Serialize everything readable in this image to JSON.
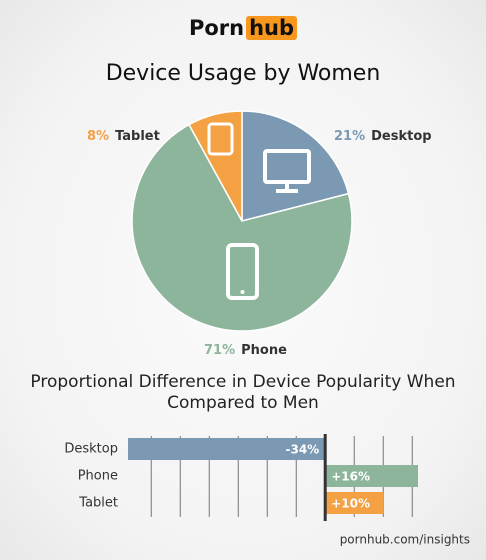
{
  "header": {
    "brand": [
      "Porn",
      "hub"
    ]
  },
  "chart_data": [
    {
      "type": "pie",
      "title": "Device Usage by Women",
      "categories": [
        "Desktop",
        "Phone",
        "Tablet"
      ],
      "values": [
        21,
        71,
        8
      ],
      "value_labels": [
        "21%",
        "71%",
        "8%"
      ],
      "colors": [
        "#7b99b2",
        "#8db59b",
        "#f4a144"
      ]
    },
    {
      "type": "barh",
      "title": "Proportional Difference in Device Popularity When Compared to Men",
      "categories": [
        "Desktop",
        "Phone",
        "Tablet"
      ],
      "values": [
        -34,
        16,
        10
      ],
      "value_labels": [
        "-34%",
        "+16%",
        "+10%"
      ],
      "colors": [
        "#7b99b2",
        "#8db59b",
        "#f4a144"
      ],
      "xlim": [
        -34,
        16
      ],
      "xticks": [
        -30,
        -25,
        -20,
        -15,
        -10,
        -5,
        0,
        5,
        10,
        15
      ],
      "grid": true
    }
  ],
  "footer": "pornhub.com/insights"
}
